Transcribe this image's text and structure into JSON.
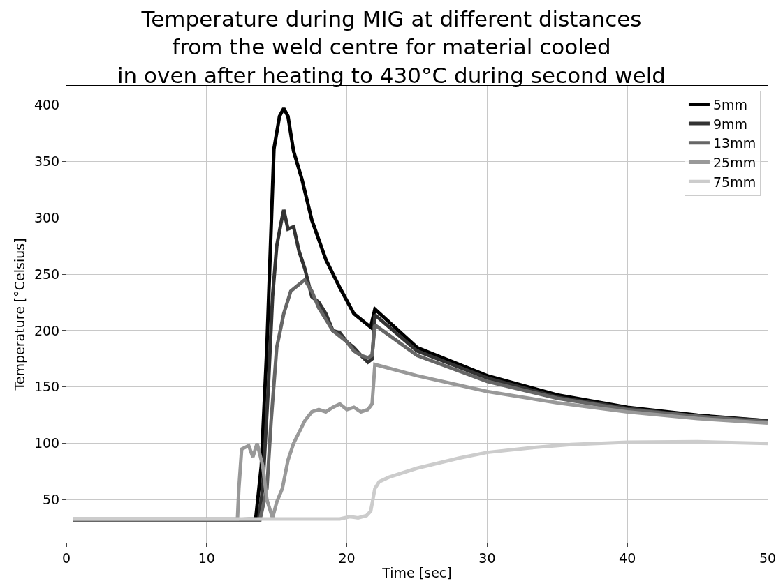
{
  "chart_data": {
    "type": "line",
    "title": "Temperature during MIG at different distances\nfrom the weld centre for material cooled\nin oven after heating to 430°C during second weld",
    "xlabel": "Time [sec]",
    "ylabel": "Temperature [°Celsius]",
    "xlim": [
      0,
      50
    ],
    "ylim": [
      12,
      417
    ],
    "xticks": [
      0,
      10,
      20,
      30,
      40,
      50
    ],
    "yticks": [
      50,
      100,
      150,
      200,
      250,
      300,
      350,
      400
    ],
    "grid": true,
    "legend": "top right",
    "line_style": "solid",
    "marker": "none",
    "series": [
      {
        "name": "5mm",
        "color": "#000000",
        "x": [
          0.5,
          5,
          10,
          13.5,
          13.9,
          14.3,
          14.8,
          15.2,
          15.5,
          15.8,
          16.2,
          16.8,
          17.5,
          18.5,
          19.5,
          20.5,
          21.7,
          22.0,
          25,
          30,
          35,
          40,
          45,
          50
        ],
        "values": [
          32,
          32,
          32,
          33,
          80,
          186,
          361,
          390,
          397,
          390,
          359,
          334,
          298,
          263,
          238,
          215,
          203,
          219,
          185,
          160,
          143,
          132,
          125,
          120
        ]
      },
      {
        "name": "9mm",
        "color": "#333333",
        "x": [
          0.5,
          5,
          10,
          13.7,
          14.0,
          14.4,
          14.7,
          15.0,
          15.3,
          15.5,
          15.8,
          16.2,
          16.6,
          17.0,
          17.5,
          18.0,
          18.5,
          19.0,
          19.5,
          20,
          20.5,
          21,
          21.5,
          21.8,
          22.0,
          25,
          30,
          35,
          40,
          45,
          50
        ],
        "values": [
          32,
          32,
          32,
          32,
          60,
          150,
          230,
          275,
          295,
          307,
          290,
          292,
          270,
          255,
          230,
          225,
          215,
          200,
          198,
          190,
          185,
          178,
          172,
          175,
          214,
          182,
          158,
          141,
          131,
          124,
          120
        ]
      },
      {
        "name": "13mm",
        "color": "#666666",
        "x": [
          0.5,
          5,
          10,
          13.8,
          14.3,
          14.6,
          15.0,
          15.5,
          16.0,
          16.5,
          17.0,
          17.5,
          18,
          18.5,
          19,
          19.5,
          20,
          20.5,
          21,
          21.5,
          21.8,
          22,
          25,
          30,
          35,
          40,
          45,
          50
        ],
        "values": [
          32,
          32,
          32,
          32,
          60,
          120,
          185,
          215,
          235,
          240,
          245,
          235,
          220,
          210,
          200,
          195,
          190,
          182,
          178,
          176,
          178,
          205,
          178,
          155,
          140,
          130,
          124,
          119
        ]
      },
      {
        "name": "25mm",
        "color": "#999999",
        "x": [
          0.5,
          5,
          10,
          12.2,
          12.3,
          12.5,
          13.0,
          13.3,
          13.6,
          14.0,
          14.3,
          14.7,
          15.0,
          15.4,
          15.8,
          16.2,
          16.6,
          17.0,
          17.5,
          18,
          18.5,
          19,
          19.5,
          20,
          20.5,
          21,
          21.5,
          21.8,
          22.0,
          25,
          30,
          35,
          40,
          45,
          50
        ],
        "values": [
          33,
          33,
          33,
          33,
          60,
          95,
          98,
          88,
          100,
          80,
          50,
          34,
          48,
          60,
          85,
          100,
          110,
          120,
          128,
          130,
          128,
          132,
          135,
          130,
          132,
          128,
          130,
          135,
          170,
          160,
          146,
          136,
          128,
          122,
          118
        ]
      },
      {
        "name": "75mm",
        "color": "#cccccc",
        "x": [
          0.5,
          5,
          10,
          15,
          19.5,
          20.2,
          20.8,
          21.4,
          21.7,
          22.0,
          22.3,
          23,
          25,
          28,
          30,
          33,
          36,
          40,
          45,
          50
        ],
        "values": [
          33,
          33,
          33,
          33,
          33,
          35,
          34,
          36,
          40,
          60,
          66,
          70,
          78,
          87,
          92,
          96,
          99,
          101,
          101.5,
          100
        ]
      }
    ]
  }
}
